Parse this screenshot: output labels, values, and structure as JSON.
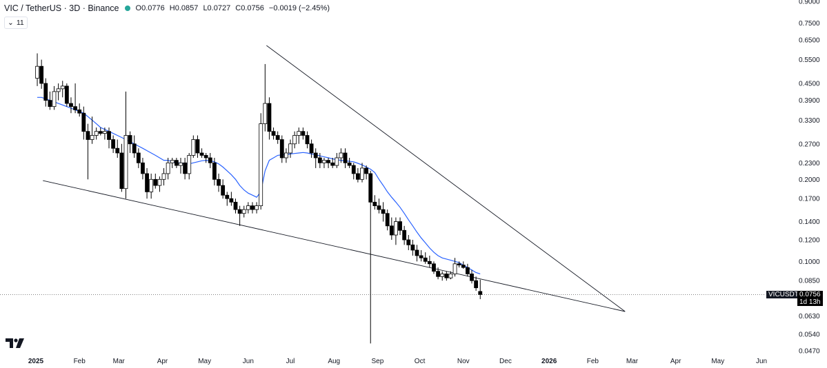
{
  "header": {
    "symbol": "VIC / TetherUS · 3D · Binance",
    "open": "O0.0776",
    "high": "H0.0857",
    "low": "L0.0727",
    "close": "C0.0756",
    "change": "−0.0019 (−2.45%)",
    "indicator_count": "11",
    "status_color": "#26a69a"
  },
  "price_tag": {
    "symbol": "VICUSDT",
    "price": "0.0756",
    "countdown": "1d 13h"
  },
  "colors": {
    "up_candle": "#ffffff",
    "down_candle": "#000000",
    "ma_line": "#2962ff",
    "trendline": "#131722"
  },
  "chart_data": {
    "type": "candlestick",
    "scale": "log",
    "y_ticks": [
      "0.0470",
      "0.0540",
      "0.0630",
      "0.0850",
      "0.1000",
      "0.1200",
      "0.1400",
      "0.1700",
      "0.2000",
      "0.2300",
      "0.2700",
      "0.3300",
      "0.3900",
      "0.4500",
      "0.5500",
      "0.6500",
      "0.7500",
      "0.9000"
    ],
    "x_ticks": [
      "2025",
      "Feb",
      "Mar",
      "Apr",
      "May",
      "Jun",
      "Jul",
      "Aug",
      "Sep",
      "Oct",
      "Nov",
      "Dec",
      "2026",
      "Feb",
      "Mar",
      "Apr",
      "May",
      "Jun"
    ],
    "candles": [
      {
        "date": "2025-01-02",
        "o": 0.47,
        "h": 0.58,
        "l": 0.44,
        "c": 0.52
      },
      {
        "date": "2025-01-05",
        "o": 0.52,
        "h": 0.55,
        "l": 0.43,
        "c": 0.45
      },
      {
        "date": "2025-01-08",
        "o": 0.45,
        "h": 0.47,
        "l": 0.37,
        "c": 0.39
      },
      {
        "date": "2025-01-11",
        "o": 0.39,
        "h": 0.42,
        "l": 0.36,
        "c": 0.37
      },
      {
        "date": "2025-01-14",
        "o": 0.37,
        "h": 0.44,
        "l": 0.36,
        "c": 0.42
      },
      {
        "date": "2025-01-17",
        "o": 0.42,
        "h": 0.45,
        "l": 0.39,
        "c": 0.43
      },
      {
        "date": "2025-01-20",
        "o": 0.43,
        "h": 0.46,
        "l": 0.4,
        "c": 0.44
      },
      {
        "date": "2025-01-23",
        "o": 0.44,
        "h": 0.45,
        "l": 0.37,
        "c": 0.38
      },
      {
        "date": "2025-01-26",
        "o": 0.38,
        "h": 0.4,
        "l": 0.35,
        "c": 0.37
      },
      {
        "date": "2025-01-29",
        "o": 0.37,
        "h": 0.45,
        "l": 0.35,
        "c": 0.36
      },
      {
        "date": "2025-02-01",
        "o": 0.36,
        "h": 0.38,
        "l": 0.34,
        "c": 0.35
      },
      {
        "date": "2025-02-04",
        "o": 0.35,
        "h": 0.37,
        "l": 0.28,
        "c": 0.3
      },
      {
        "date": "2025-02-07",
        "o": 0.3,
        "h": 0.32,
        "l": 0.2,
        "c": 0.28
      },
      {
        "date": "2025-02-10",
        "o": 0.28,
        "h": 0.34,
        "l": 0.27,
        "c": 0.29
      },
      {
        "date": "2025-02-13",
        "o": 0.29,
        "h": 0.31,
        "l": 0.28,
        "c": 0.3
      },
      {
        "date": "2025-02-16",
        "o": 0.3,
        "h": 0.31,
        "l": 0.29,
        "c": 0.295
      },
      {
        "date": "2025-02-19",
        "o": 0.295,
        "h": 0.31,
        "l": 0.28,
        "c": 0.3
      },
      {
        "date": "2025-02-22",
        "o": 0.3,
        "h": 0.31,
        "l": 0.26,
        "c": 0.28
      },
      {
        "date": "2025-02-25",
        "o": 0.28,
        "h": 0.29,
        "l": 0.25,
        "c": 0.26
      },
      {
        "date": "2025-02-28",
        "o": 0.26,
        "h": 0.28,
        "l": 0.24,
        "c": 0.25
      },
      {
        "date": "2025-03-03",
        "o": 0.25,
        "h": 0.27,
        "l": 0.18,
        "c": 0.185
      },
      {
        "date": "2025-03-06",
        "o": 0.185,
        "h": 0.42,
        "l": 0.17,
        "c": 0.29
      },
      {
        "date": "2025-03-09",
        "o": 0.29,
        "h": 0.3,
        "l": 0.25,
        "c": 0.27
      },
      {
        "date": "2025-03-12",
        "o": 0.27,
        "h": 0.29,
        "l": 0.24,
        "c": 0.25
      },
      {
        "date": "2025-03-15",
        "o": 0.25,
        "h": 0.26,
        "l": 0.22,
        "c": 0.23
      },
      {
        "date": "2025-03-18",
        "o": 0.23,
        "h": 0.24,
        "l": 0.2,
        "c": 0.21
      },
      {
        "date": "2025-03-21",
        "o": 0.21,
        "h": 0.22,
        "l": 0.17,
        "c": 0.18
      },
      {
        "date": "2025-03-24",
        "o": 0.18,
        "h": 0.21,
        "l": 0.17,
        "c": 0.2
      },
      {
        "date": "2025-03-27",
        "o": 0.2,
        "h": 0.21,
        "l": 0.185,
        "c": 0.19
      },
      {
        "date": "2025-03-30",
        "o": 0.19,
        "h": 0.205,
        "l": 0.18,
        "c": 0.2
      },
      {
        "date": "2025-04-02",
        "o": 0.2,
        "h": 0.22,
        "l": 0.19,
        "c": 0.21
      },
      {
        "date": "2025-04-05",
        "o": 0.21,
        "h": 0.24,
        "l": 0.2,
        "c": 0.23
      },
      {
        "date": "2025-04-08",
        "o": 0.23,
        "h": 0.24,
        "l": 0.22,
        "c": 0.235
      },
      {
        "date": "2025-04-11",
        "o": 0.235,
        "h": 0.24,
        "l": 0.22,
        "c": 0.225
      },
      {
        "date": "2025-04-14",
        "o": 0.225,
        "h": 0.24,
        "l": 0.21,
        "c": 0.23
      },
      {
        "date": "2025-04-17",
        "o": 0.23,
        "h": 0.24,
        "l": 0.2,
        "c": 0.21
      },
      {
        "date": "2025-04-20",
        "o": 0.21,
        "h": 0.25,
        "l": 0.2,
        "c": 0.245
      },
      {
        "date": "2025-04-23",
        "o": 0.245,
        "h": 0.29,
        "l": 0.24,
        "c": 0.28
      },
      {
        "date": "2025-04-26",
        "o": 0.28,
        "h": 0.29,
        "l": 0.24,
        "c": 0.25
      },
      {
        "date": "2025-04-29",
        "o": 0.25,
        "h": 0.26,
        "l": 0.24,
        "c": 0.245
      },
      {
        "date": "2025-05-02",
        "o": 0.245,
        "h": 0.25,
        "l": 0.23,
        "c": 0.24
      },
      {
        "date": "2025-05-05",
        "o": 0.24,
        "h": 0.25,
        "l": 0.22,
        "c": 0.23
      },
      {
        "date": "2025-05-08",
        "o": 0.23,
        "h": 0.24,
        "l": 0.19,
        "c": 0.2
      },
      {
        "date": "2025-05-11",
        "o": 0.2,
        "h": 0.21,
        "l": 0.18,
        "c": 0.19
      },
      {
        "date": "2025-05-14",
        "o": 0.19,
        "h": 0.2,
        "l": 0.17,
        "c": 0.175
      },
      {
        "date": "2025-05-17",
        "o": 0.175,
        "h": 0.18,
        "l": 0.16,
        "c": 0.17
      },
      {
        "date": "2025-05-20",
        "o": 0.17,
        "h": 0.18,
        "l": 0.16,
        "c": 0.165
      },
      {
        "date": "2025-05-23",
        "o": 0.165,
        "h": 0.17,
        "l": 0.15,
        "c": 0.155
      },
      {
        "date": "2025-05-26",
        "o": 0.155,
        "h": 0.16,
        "l": 0.135,
        "c": 0.15
      },
      {
        "date": "2025-05-29",
        "o": 0.15,
        "h": 0.16,
        "l": 0.145,
        "c": 0.155
      },
      {
        "date": "2025-06-01",
        "o": 0.155,
        "h": 0.165,
        "l": 0.15,
        "c": 0.16
      },
      {
        "date": "2025-06-04",
        "o": 0.16,
        "h": 0.165,
        "l": 0.15,
        "c": 0.155
      },
      {
        "date": "2025-06-07",
        "o": 0.155,
        "h": 0.165,
        "l": 0.15,
        "c": 0.16
      },
      {
        "date": "2025-06-10",
        "o": 0.16,
        "h": 0.35,
        "l": 0.155,
        "c": 0.32
      },
      {
        "date": "2025-06-13",
        "o": 0.32,
        "h": 0.53,
        "l": 0.3,
        "c": 0.38
      },
      {
        "date": "2025-06-16",
        "o": 0.38,
        "h": 0.4,
        "l": 0.28,
        "c": 0.3
      },
      {
        "date": "2025-06-19",
        "o": 0.3,
        "h": 0.31,
        "l": 0.28,
        "c": 0.29
      },
      {
        "date": "2025-06-22",
        "o": 0.29,
        "h": 0.3,
        "l": 0.27,
        "c": 0.28
      },
      {
        "date": "2025-06-25",
        "o": 0.28,
        "h": 0.29,
        "l": 0.23,
        "c": 0.24
      },
      {
        "date": "2025-06-28",
        "o": 0.24,
        "h": 0.26,
        "l": 0.23,
        "c": 0.25
      },
      {
        "date": "2025-07-01",
        "o": 0.25,
        "h": 0.28,
        "l": 0.24,
        "c": 0.27
      },
      {
        "date": "2025-07-04",
        "o": 0.27,
        "h": 0.3,
        "l": 0.26,
        "c": 0.29
      },
      {
        "date": "2025-07-07",
        "o": 0.29,
        "h": 0.31,
        "l": 0.27,
        "c": 0.3
      },
      {
        "date": "2025-07-10",
        "o": 0.3,
        "h": 0.31,
        "l": 0.28,
        "c": 0.29
      },
      {
        "date": "2025-07-13",
        "o": 0.29,
        "h": 0.3,
        "l": 0.26,
        "c": 0.27
      },
      {
        "date": "2025-07-16",
        "o": 0.27,
        "h": 0.28,
        "l": 0.24,
        "c": 0.25
      },
      {
        "date": "2025-07-19",
        "o": 0.25,
        "h": 0.26,
        "l": 0.22,
        "c": 0.24
      },
      {
        "date": "2025-07-22",
        "o": 0.24,
        "h": 0.25,
        "l": 0.22,
        "c": 0.23
      },
      {
        "date": "2025-07-25",
        "o": 0.23,
        "h": 0.24,
        "l": 0.22,
        "c": 0.235
      },
      {
        "date": "2025-07-28",
        "o": 0.235,
        "h": 0.24,
        "l": 0.22,
        "c": 0.23
      },
      {
        "date": "2025-07-31",
        "o": 0.23,
        "h": 0.24,
        "l": 0.22,
        "c": 0.225
      },
      {
        "date": "2025-08-03",
        "o": 0.225,
        "h": 0.25,
        "l": 0.22,
        "c": 0.24
      },
      {
        "date": "2025-08-06",
        "o": 0.24,
        "h": 0.26,
        "l": 0.23,
        "c": 0.25
      },
      {
        "date": "2025-08-09",
        "o": 0.25,
        "h": 0.26,
        "l": 0.22,
        "c": 0.23
      },
      {
        "date": "2025-08-12",
        "o": 0.23,
        "h": 0.24,
        "l": 0.22,
        "c": 0.225
      },
      {
        "date": "2025-08-15",
        "o": 0.225,
        "h": 0.23,
        "l": 0.2,
        "c": 0.21
      },
      {
        "date": "2025-08-18",
        "o": 0.21,
        "h": 0.22,
        "l": 0.195,
        "c": 0.2
      },
      {
        "date": "2025-08-21",
        "o": 0.2,
        "h": 0.23,
        "l": 0.195,
        "c": 0.22
      },
      {
        "date": "2025-08-24",
        "o": 0.22,
        "h": 0.225,
        "l": 0.2,
        "c": 0.21
      },
      {
        "date": "2025-08-27",
        "o": 0.21,
        "h": 0.215,
        "l": 0.05,
        "c": 0.165
      },
      {
        "date": "2025-08-30",
        "o": 0.165,
        "h": 0.175,
        "l": 0.155,
        "c": 0.16
      },
      {
        "date": "2025-09-02",
        "o": 0.16,
        "h": 0.17,
        "l": 0.15,
        "c": 0.155
      },
      {
        "date": "2025-09-05",
        "o": 0.155,
        "h": 0.165,
        "l": 0.14,
        "c": 0.15
      },
      {
        "date": "2025-09-08",
        "o": 0.15,
        "h": 0.155,
        "l": 0.13,
        "c": 0.135
      },
      {
        "date": "2025-09-11",
        "o": 0.135,
        "h": 0.145,
        "l": 0.12,
        "c": 0.125
      },
      {
        "date": "2025-09-14",
        "o": 0.125,
        "h": 0.145,
        "l": 0.115,
        "c": 0.14
      },
      {
        "date": "2025-09-17",
        "o": 0.14,
        "h": 0.145,
        "l": 0.125,
        "c": 0.13
      },
      {
        "date": "2025-09-20",
        "o": 0.13,
        "h": 0.135,
        "l": 0.115,
        "c": 0.12
      },
      {
        "date": "2025-09-23",
        "o": 0.12,
        "h": 0.125,
        "l": 0.11,
        "c": 0.115
      },
      {
        "date": "2025-09-26",
        "o": 0.115,
        "h": 0.12,
        "l": 0.105,
        "c": 0.11
      },
      {
        "date": "2025-09-29",
        "o": 0.11,
        "h": 0.115,
        "l": 0.1,
        "c": 0.105
      },
      {
        "date": "2025-10-02",
        "o": 0.105,
        "h": 0.11,
        "l": 0.1,
        "c": 0.103
      },
      {
        "date": "2025-10-05",
        "o": 0.103,
        "h": 0.108,
        "l": 0.098,
        "c": 0.1
      },
      {
        "date": "2025-10-08",
        "o": 0.1,
        "h": 0.105,
        "l": 0.095,
        "c": 0.098
      },
      {
        "date": "2025-10-11",
        "o": 0.098,
        "h": 0.1,
        "l": 0.09,
        "c": 0.092
      },
      {
        "date": "2025-10-14",
        "o": 0.092,
        "h": 0.095,
        "l": 0.086,
        "c": 0.088
      },
      {
        "date": "2025-10-17",
        "o": 0.088,
        "h": 0.092,
        "l": 0.085,
        "c": 0.09
      },
      {
        "date": "2025-10-20",
        "o": 0.09,
        "h": 0.092,
        "l": 0.085,
        "c": 0.087
      },
      {
        "date": "2025-10-23",
        "o": 0.087,
        "h": 0.092,
        "l": 0.086,
        "c": 0.09
      },
      {
        "date": "2025-10-26",
        "o": 0.09,
        "h": 0.103,
        "l": 0.088,
        "c": 0.098
      },
      {
        "date": "2025-10-29",
        "o": 0.098,
        "h": 0.1,
        "l": 0.095,
        "c": 0.097
      },
      {
        "date": "2025-11-01",
        "o": 0.097,
        "h": 0.1,
        "l": 0.094,
        "c": 0.095
      },
      {
        "date": "2025-11-04",
        "o": 0.095,
        "h": 0.098,
        "l": 0.088,
        "c": 0.09
      },
      {
        "date": "2025-11-07",
        "o": 0.09,
        "h": 0.093,
        "l": 0.083,
        "c": 0.085
      },
      {
        "date": "2025-11-10",
        "o": 0.085,
        "h": 0.088,
        "l": 0.078,
        "c": 0.08
      },
      {
        "date": "2025-11-13",
        "o": 0.0776,
        "h": 0.0857,
        "l": 0.0727,
        "c": 0.0756
      }
    ],
    "ma": [
      0.4,
      0.4,
      0.395,
      0.39,
      0.385,
      0.38,
      0.375,
      0.37,
      0.365,
      0.36,
      0.355,
      0.35,
      0.34,
      0.33,
      0.32,
      0.31,
      0.305,
      0.3,
      0.295,
      0.29,
      0.285,
      0.28,
      0.275,
      0.27,
      0.265,
      0.26,
      0.255,
      0.25,
      0.245,
      0.24,
      0.235,
      0.235,
      0.232,
      0.23,
      0.23,
      0.228,
      0.228,
      0.23,
      0.232,
      0.234,
      0.235,
      0.234,
      0.232,
      0.228,
      0.222,
      0.215,
      0.208,
      0.2,
      0.19,
      0.183,
      0.178,
      0.175,
      0.172,
      0.18,
      0.215,
      0.235,
      0.24,
      0.245,
      0.246,
      0.247,
      0.248,
      0.249,
      0.25,
      0.251,
      0.25,
      0.248,
      0.246,
      0.244,
      0.242,
      0.24,
      0.238,
      0.236,
      0.235,
      0.234,
      0.233,
      0.232,
      0.229,
      0.226,
      0.222,
      0.218,
      0.212,
      0.2,
      0.19,
      0.18,
      0.172,
      0.165,
      0.158,
      0.15,
      0.142,
      0.135,
      0.128,
      0.122,
      0.117,
      0.112,
      0.108,
      0.105,
      0.103,
      0.102,
      0.101,
      0.1,
      0.099,
      0.097,
      0.095,
      0.093,
      0.091,
      0.09
    ],
    "trendlines": [
      {
        "name": "upper",
        "from": {
          "date": "2025-06-14",
          "price": 0.62
        },
        "to": {
          "date": "2026-02-24",
          "price": 0.0655
        }
      },
      {
        "name": "lower",
        "from": {
          "date": "2025-01-06",
          "price": 0.198
        },
        "to": {
          "date": "2026-02-24",
          "price": 0.0655
        }
      }
    ],
    "last_price": 0.0756
  }
}
